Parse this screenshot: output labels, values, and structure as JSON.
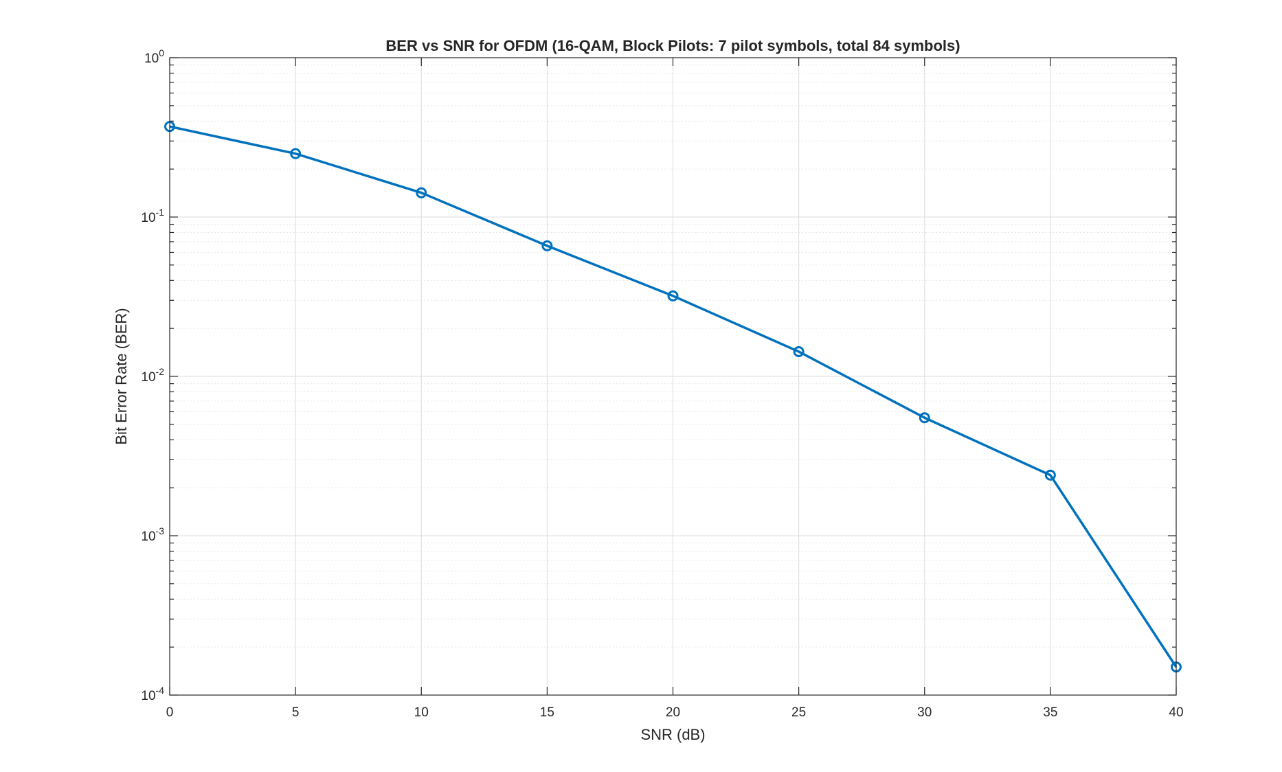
{
  "chart_data": {
    "type": "line",
    "title": "BER vs SNR for OFDM (16-QAM, Block Pilots: 7 pilot symbols, total 84 symbols)",
    "xlabel": "SNR (dB)",
    "ylabel": "Bit Error Rate (BER)",
    "xlim": [
      0,
      40
    ],
    "ylim": [
      0.0001,
      1
    ],
    "yscale": "log",
    "grid": true,
    "minor_grid": true,
    "xticks": [
      0,
      5,
      10,
      15,
      20,
      25,
      30,
      35,
      40
    ],
    "yticks": [
      {
        "base": "10",
        "exp": "0",
        "value": 1
      },
      {
        "base": "10",
        "exp": "-1",
        "value": 0.1
      },
      {
        "base": "10",
        "exp": "-2",
        "value": 0.01
      },
      {
        "base": "10",
        "exp": "-3",
        "value": 0.001
      },
      {
        "base": "10",
        "exp": "-4",
        "value": 0.0001
      }
    ],
    "series": [
      {
        "color": "#0072bd",
        "marker": "circle",
        "x": [
          0,
          5,
          10,
          15,
          20,
          25,
          30,
          35,
          40
        ],
        "values": [
          0.37,
          0.25,
          0.142,
          0.066,
          0.032,
          0.0143,
          0.0055,
          0.0024,
          0.00015
        ]
      }
    ]
  }
}
